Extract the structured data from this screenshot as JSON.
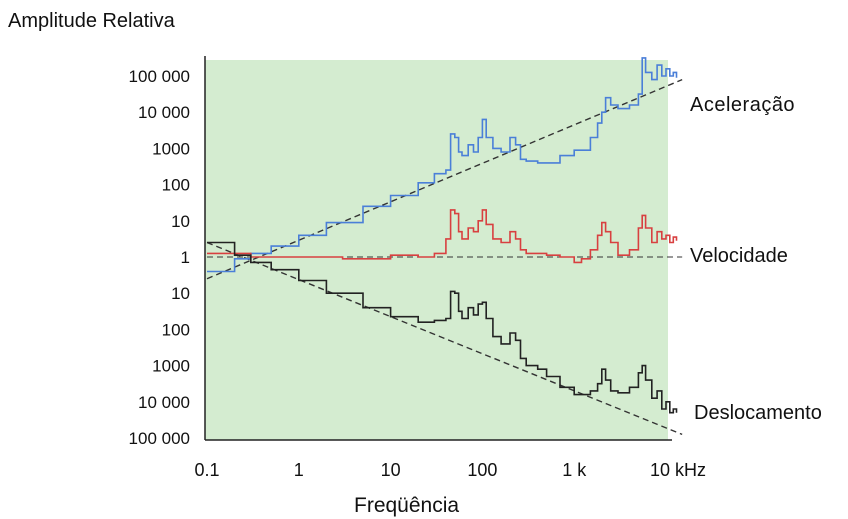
{
  "chart_data": {
    "type": "line",
    "title": "",
    "ylabel": "Amplitude Relativa",
    "xlabel": "Freqüência",
    "x_scale": "log",
    "x_ticks": [
      {
        "v": 0.1,
        "label": "0.1"
      },
      {
        "v": 1,
        "label": "1"
      },
      {
        "v": 10,
        "label": "10"
      },
      {
        "v": 100,
        "label": "100"
      },
      {
        "v": 1000,
        "label": "1 k"
      },
      {
        "v": 10000,
        "label": "10 kHz"
      }
    ],
    "y_tick_labels": [
      "100 000",
      "10 000",
      "1000",
      "100",
      "10",
      "1",
      "10",
      "100",
      "1000",
      "10 000",
      "100 000"
    ],
    "y_range_log_decades": [
      -5,
      5
    ],
    "grid": false,
    "background_color": "#d4ecd0",
    "series": [
      {
        "name": "Aceleração",
        "color": "#4a7fd8",
        "trend_line": [
          [
            0.1,
            -0.6
          ],
          [
            15000,
            4.9
          ]
        ],
        "points": [
          [
            0.1,
            -0.4
          ],
          [
            0.2,
            -0.05
          ],
          [
            0.3,
            0.1
          ],
          [
            0.5,
            0.3
          ],
          [
            1,
            0.6
          ],
          [
            2,
            0.95
          ],
          [
            5,
            1.4
          ],
          [
            10,
            1.7
          ],
          [
            20,
            2.05
          ],
          [
            30,
            2.3
          ],
          [
            40,
            2.4
          ],
          [
            45,
            3.4
          ],
          [
            50,
            3.3
          ],
          [
            55,
            2.9
          ],
          [
            60,
            2.8
          ],
          [
            70,
            3.1
          ],
          [
            80,
            2.9
          ],
          [
            90,
            3.3
          ],
          [
            100,
            3.8
          ],
          [
            110,
            3.3
          ],
          [
            130,
            3.0
          ],
          [
            160,
            2.9
          ],
          [
            200,
            3.3
          ],
          [
            230,
            3.1
          ],
          [
            260,
            2.7
          ],
          [
            300,
            2.65
          ],
          [
            400,
            2.6
          ],
          [
            500,
            2.6
          ],
          [
            700,
            2.8
          ],
          [
            1000,
            2.95
          ],
          [
            1500,
            3.3
          ],
          [
            1800,
            3.7
          ],
          [
            2000,
            4.0
          ],
          [
            2200,
            4.4
          ],
          [
            2500,
            4.2
          ],
          [
            3000,
            4.1
          ],
          [
            4000,
            4.2
          ],
          [
            5000,
            4.5
          ],
          [
            5500,
            5.5
          ],
          [
            6000,
            5.1
          ],
          [
            7000,
            4.9
          ],
          [
            8000,
            5.3
          ],
          [
            9000,
            5.0
          ],
          [
            10000,
            5.2
          ],
          [
            11000,
            5.0
          ],
          [
            12000,
            5.1
          ],
          [
            13000,
            4.95
          ]
        ]
      },
      {
        "name": "Velocidade",
        "color": "#d84040",
        "trend_line": [
          [
            0.1,
            0.0
          ],
          [
            15000,
            0.0
          ]
        ],
        "points": [
          [
            0.1,
            0.1
          ],
          [
            0.3,
            0.0
          ],
          [
            1,
            0.0
          ],
          [
            3,
            -0.05
          ],
          [
            10,
            0.05
          ],
          [
            20,
            0.0
          ],
          [
            30,
            0.1
          ],
          [
            40,
            0.5
          ],
          [
            45,
            1.3
          ],
          [
            50,
            1.2
          ],
          [
            55,
            0.7
          ],
          [
            60,
            0.5
          ],
          [
            70,
            0.8
          ],
          [
            80,
            0.7
          ],
          [
            90,
            1.0
          ],
          [
            100,
            1.3
          ],
          [
            110,
            0.9
          ],
          [
            130,
            0.5
          ],
          [
            160,
            0.4
          ],
          [
            200,
            0.7
          ],
          [
            230,
            0.5
          ],
          [
            260,
            0.2
          ],
          [
            300,
            0.1
          ],
          [
            500,
            0.05
          ],
          [
            700,
            0.0
          ],
          [
            1000,
            -0.15
          ],
          [
            1200,
            -0.05
          ],
          [
            1500,
            0.2
          ],
          [
            1800,
            0.6
          ],
          [
            2000,
            0.95
          ],
          [
            2200,
            0.7
          ],
          [
            2500,
            0.4
          ],
          [
            3000,
            0.05
          ],
          [
            4000,
            0.2
          ],
          [
            5000,
            0.8
          ],
          [
            5500,
            1.15
          ],
          [
            6000,
            0.8
          ],
          [
            7000,
            0.4
          ],
          [
            8000,
            0.7
          ],
          [
            9000,
            0.5
          ],
          [
            10000,
            0.6
          ],
          [
            11000,
            0.4
          ],
          [
            12000,
            0.55
          ],
          [
            13000,
            0.45
          ]
        ]
      },
      {
        "name": "Deslocamento",
        "color": "#222222",
        "trend_line": [
          [
            0.1,
            0.4
          ],
          [
            15000,
            -4.9
          ]
        ],
        "points": [
          [
            0.1,
            0.4
          ],
          [
            0.2,
            0.05
          ],
          [
            0.3,
            -0.15
          ],
          [
            0.5,
            -0.35
          ],
          [
            1,
            -0.65
          ],
          [
            2,
            -1.0
          ],
          [
            5,
            -1.4
          ],
          [
            10,
            -1.65
          ],
          [
            20,
            -1.8
          ],
          [
            30,
            -1.75
          ],
          [
            40,
            -1.7
          ],
          [
            45,
            -0.95
          ],
          [
            50,
            -1.0
          ],
          [
            55,
            -1.5
          ],
          [
            60,
            -1.7
          ],
          [
            70,
            -1.4
          ],
          [
            80,
            -1.6
          ],
          [
            90,
            -1.3
          ],
          [
            100,
            -1.25
          ],
          [
            110,
            -1.7
          ],
          [
            130,
            -2.2
          ],
          [
            160,
            -2.4
          ],
          [
            200,
            -2.1
          ],
          [
            230,
            -2.3
          ],
          [
            260,
            -2.8
          ],
          [
            300,
            -3.0
          ],
          [
            400,
            -3.1
          ],
          [
            500,
            -3.3
          ],
          [
            700,
            -3.6
          ],
          [
            1000,
            -3.8
          ],
          [
            1500,
            -3.7
          ],
          [
            1800,
            -3.5
          ],
          [
            2000,
            -3.1
          ],
          [
            2200,
            -3.4
          ],
          [
            2500,
            -3.7
          ],
          [
            3000,
            -3.75
          ],
          [
            4000,
            -3.6
          ],
          [
            5000,
            -3.2
          ],
          [
            5500,
            -3.0
          ],
          [
            6000,
            -3.4
          ],
          [
            7000,
            -3.9
          ],
          [
            8000,
            -3.7
          ],
          [
            9000,
            -4.2
          ],
          [
            10000,
            -4.0
          ],
          [
            11000,
            -4.3
          ],
          [
            12000,
            -4.2
          ],
          [
            13000,
            -4.3
          ]
        ]
      }
    ]
  }
}
